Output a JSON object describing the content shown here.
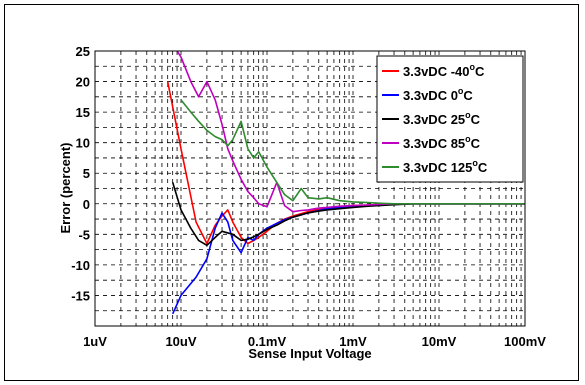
{
  "chart_data": {
    "type": "line",
    "title": "",
    "xlabel": "Sense Input Voltage",
    "ylabel": "Error (percent)",
    "x_scale": "log",
    "xlim": [
      1e-06,
      0.1
    ],
    "ylim": [
      -20,
      25
    ],
    "grid": true,
    "legend_position": "top-right",
    "x_ticks": [
      {
        "value": 1e-06,
        "label": "1uV"
      },
      {
        "value": 1e-05,
        "label": "10uV"
      },
      {
        "value": 0.0001,
        "label": "0.1mV"
      },
      {
        "value": 0.001,
        "label": "1mV"
      },
      {
        "value": 0.01,
        "label": "10mV"
      },
      {
        "value": 0.1,
        "label": "100mV"
      }
    ],
    "y_ticks": [
      {
        "value": 25,
        "label": "25"
      },
      {
        "value": 20,
        "label": "20"
      },
      {
        "value": 15,
        "label": "15"
      },
      {
        "value": 10,
        "label": "10"
      },
      {
        "value": 5,
        "label": "5"
      },
      {
        "value": 0,
        "label": "0"
      },
      {
        "value": -5,
        "label": "-5"
      },
      {
        "value": -10,
        "label": "-10"
      },
      {
        "value": -15,
        "label": "-15"
      }
    ],
    "series": [
      {
        "name": "3.3vDC -40",
        "temp": "o",
        "tempunit": "C",
        "color": "#ff0000",
        "x": [
          7e-06,
          1e-05,
          1.5e-05,
          2e-05,
          2.5e-05,
          3e-05,
          3.5e-05,
          4e-05,
          5e-05,
          6e-05,
          7e-05,
          8e-05,
          0.0001,
          0.00013,
          0.00016,
          0.0002,
          0.00025,
          0.0003,
          0.0004,
          0.0005,
          0.0007,
          0.001,
          0.0015,
          0.002,
          0.003,
          0.005,
          0.01,
          0.02,
          0.05,
          0.1
        ],
        "y": [
          20,
          9,
          -3,
          -6.5,
          -3.5,
          -2,
          -1,
          -3,
          -5.5,
          -6.5,
          -6,
          -5.5,
          -4.5,
          -3.2,
          -2.5,
          -2,
          -1.6,
          -1.3,
          -0.9,
          -0.7,
          -0.5,
          -0.3,
          -0.2,
          -0.1,
          -0.05,
          0,
          0,
          0,
          0,
          0
        ]
      },
      {
        "name": "3.3vDC 0",
        "temp": "o",
        "tempunit": "C",
        "color": "#0000ff",
        "x": [
          8e-06,
          1e-05,
          1.5e-05,
          2e-05,
          2.5e-05,
          3e-05,
          3.5e-05,
          4e-05,
          5e-05,
          6e-05,
          7e-05,
          8e-05,
          0.0001,
          0.00013,
          0.00016,
          0.0002,
          0.00025,
          0.0003,
          0.0004,
          0.0005,
          0.0007,
          0.001,
          0.0015,
          0.002,
          0.003,
          0.005,
          0.01,
          0.02,
          0.05,
          0.1
        ],
        "y": [
          -18,
          -15,
          -12,
          -9,
          -4,
          -1.5,
          -3,
          -6,
          -8,
          -5.5,
          -6,
          -5,
          -4,
          -3.2,
          -2.6,
          -2.2,
          -1.8,
          -1.5,
          -1.1,
          -0.8,
          -0.6,
          -0.4,
          -0.3,
          -0.2,
          -0.1,
          0,
          0,
          0,
          0,
          0
        ]
      },
      {
        "name": "3.3vDC 25",
        "temp": "o",
        "tempunit": "C",
        "color": "#000000",
        "x": [
          8e-06,
          1e-05,
          1.3e-05,
          1.6e-05,
          2e-05,
          2.5e-05,
          3e-05,
          4e-05,
          5e-05,
          6e-05,
          7e-05,
          8e-05,
          0.0001,
          0.00013,
          0.00016,
          0.0002,
          0.00025,
          0.0003,
          0.0004,
          0.0005,
          0.0007,
          0.001,
          0.0015,
          0.002,
          0.003,
          0.005,
          0.01,
          0.02,
          0.05,
          0.1
        ],
        "y": [
          3.5,
          -1,
          -4,
          -6,
          -6.8,
          -5.5,
          -4.5,
          -5,
          -6,
          -5.8,
          -5.4,
          -5,
          -4.2,
          -3.5,
          -2.8,
          -2.2,
          -1.8,
          -1.5,
          -1.2,
          -1,
          -0.8,
          -0.6,
          -0.4,
          -0.3,
          -0.15,
          0,
          0,
          0,
          0,
          0
        ]
      },
      {
        "name": "3.3vDC 85",
        "temp": "o",
        "tempunit": "C",
        "color": "#c000c0",
        "x": [
          9e-06,
          1e-05,
          1.3e-05,
          1.6e-05,
          2e-05,
          2.5e-05,
          3e-05,
          3.5e-05,
          4e-05,
          5e-05,
          6e-05,
          7e-05,
          8e-05,
          0.0001,
          0.00013,
          0.00016,
          0.0002,
          0.00025,
          0.0003,
          0.0004,
          0.0005,
          0.0007,
          0.001,
          0.0015,
          0.002,
          0.003,
          0.005,
          0.01,
          0.02,
          0.05,
          0.1
        ],
        "y": [
          25,
          24,
          20,
          17.5,
          20,
          17,
          13,
          9,
          7,
          4,
          2,
          1,
          0,
          -0.5,
          3.5,
          -0.3,
          -1.3,
          -1.1,
          -1,
          -0.7,
          -0.6,
          -0.4,
          -0.3,
          -0.2,
          -0.1,
          0,
          0,
          0,
          0,
          0,
          0
        ]
      },
      {
        "name": "3.3vDC 125",
        "temp": "o",
        "tempunit": "C",
        "color": "#2e8b2e",
        "x": [
          1e-05,
          1.3e-05,
          1.6e-05,
          2e-05,
          2.5e-05,
          3e-05,
          3.5e-05,
          4e-05,
          5e-05,
          6e-05,
          7e-05,
          8e-05,
          0.0001,
          0.00013,
          0.00016,
          0.0002,
          0.00025,
          0.0003,
          0.0004,
          0.0005,
          0.0007,
          0.001,
          0.0015,
          0.002,
          0.003,
          0.005,
          0.01,
          0.02,
          0.05,
          0.1
        ],
        "y": [
          17,
          15,
          13.5,
          12,
          11,
          10.5,
          9.5,
          10.5,
          13.5,
          9,
          7.5,
          8.5,
          6,
          3.5,
          1.5,
          0.5,
          2.5,
          1,
          0.8,
          1,
          0.5,
          0.3,
          0.2,
          0.1,
          0,
          0,
          0,
          0,
          0,
          0
        ]
      }
    ]
  }
}
